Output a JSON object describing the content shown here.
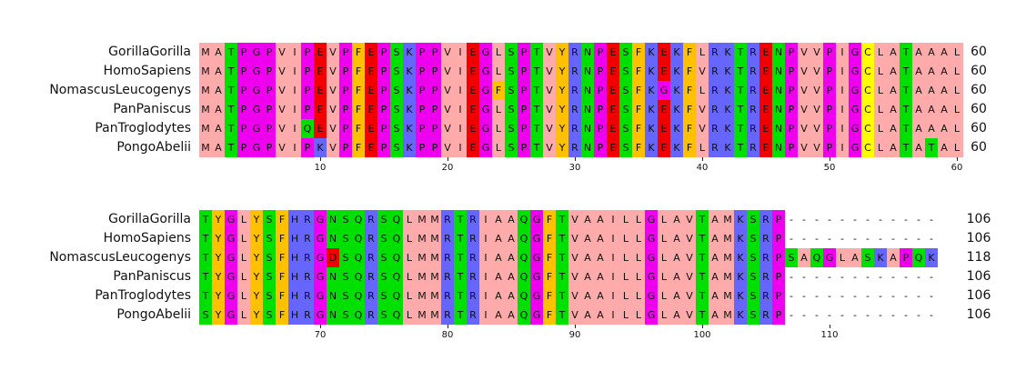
{
  "chart_data": {
    "type": "table",
    "title": "",
    "xlabel": "",
    "ylabel": "",
    "grid": false,
    "legend": false,
    "description": "Multiple sequence alignment of 6 primate protein sequences, Zappo-style residue coloring, wrapped into two blocks",
    "species": [
      "GorillaGorilla",
      "HomoSapiens",
      "NomascusLeucogenys",
      "PanPaniscus",
      "PanTroglodytes",
      "PongoAbelii"
    ],
    "gap_char": "-",
    "color_scheme": {
      "A": "#ffabab",
      "V": "#ffabab",
      "L": "#ffabab",
      "I": "#ffabab",
      "M": "#ffabab",
      "F": "#ffc000",
      "Y": "#ffc000",
      "K": "#6666ff",
      "R": "#6666ff",
      "H": "#6666ff",
      "D": "#f20000",
      "E": "#f20000",
      "S": "#00e000",
      "T": "#00e000",
      "N": "#00e000",
      "Q": "#00e000",
      "P": "#ee00ee",
      "G": "#ee00ee",
      "C": "#ffff00",
      "-": "transparent"
    },
    "letter_color": "#111111",
    "blocks": [
      {
        "start": 1,
        "end": 60,
        "ticks": [
          10,
          20,
          30,
          40,
          50,
          60
        ],
        "rows": [
          {
            "name": "GorillaGorilla",
            "seq": "MATPGPVIPEVPFEPSKPPVIEGLSPTVYRNPESFKEKFLRKTRENPVVPIGCLATAAAL",
            "count": "60"
          },
          {
            "name": "HomoSapiens",
            "seq": "MATPGPVIPEVPFEPSKPPVIEGLSPTVYRNPESFKEKFVRKTRENPVVPIGCLATAAAL",
            "count": "60"
          },
          {
            "name": "NomascusLeucogenys",
            "seq": "MATPGPVIPEVPFEPSKPPVIEGFSPTVYRNPESFKGKFLRKTRENPVVPIGCLATAAAL",
            "count": "60"
          },
          {
            "name": "PanPaniscus",
            "seq": "MATPGPVIPEVPFEPSKPPVIEGLSPTVYRNPESFKEKFVRKTRENPVVPIGCLATAAAL",
            "count": "60"
          },
          {
            "name": "PanTroglodytes",
            "seq": "MATPGPVIQEVPFEPSKPPVIEGLSPTVYRNPESFKEKFVRKTRENPVVPIGCLATAAAL",
            "count": "60"
          },
          {
            "name": "PongoAbelii",
            "seq": "MATPGPVIPKVPFEPSKPPVIEGLSPTVYRNPESFKEKFLRKTRENPVVPIGCLATATAL",
            "count": "60"
          }
        ]
      },
      {
        "start": 61,
        "end": 118,
        "ticks": [
          70,
          80,
          90,
          100,
          110
        ],
        "rows": [
          {
            "name": "GorillaGorilla",
            "seq": "TYGLYSFHRGNSQRSQLMMRTRIAAQGFTVAAILLGLAVTAMKSRP------------",
            "count": "106"
          },
          {
            "name": "HomoSapiens",
            "seq": "TYGLYSFHRGNSQRSQLMMRTRIAAQGFTVAAILLGLAVTAMKSRP------------",
            "count": "106"
          },
          {
            "name": "NomascusLeucogenys",
            "seq": "TYGLYSFHRGDSQRSQLMMRTRIAAQGFTVAAILLGLAVTAMKSRPSAQGLASKAPQK",
            "count": "118"
          },
          {
            "name": "PanPaniscus",
            "seq": "TYGLYSFHRGNSQRSQLMMRTRIAAQGFTVAAILLGLAVTAMKSRP------------",
            "count": "106"
          },
          {
            "name": "PanTroglodytes",
            "seq": "TYGLYSFHRGNSQRSQLMMRTRIAAQGFTVAAILLGLAVTAMKSRP------------",
            "count": "106"
          },
          {
            "name": "PongoAbelii",
            "seq": "SYGLYSFHRGNSQRSQLMMRTRIAAQGFTVAAILLGLAVTAMKSRP------------",
            "count": "106"
          }
        ]
      }
    ]
  }
}
